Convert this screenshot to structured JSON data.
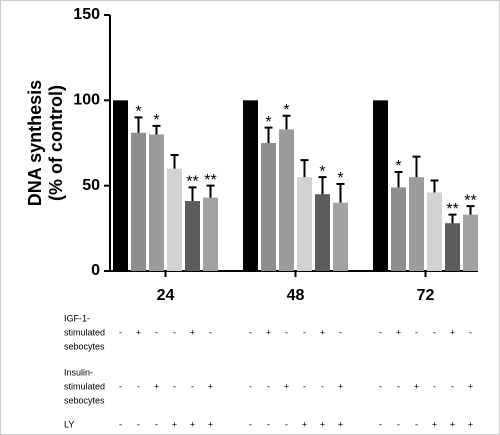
{
  "chart_data": {
    "type": "bar",
    "y_label": [
      "DNA synthesis",
      "(% of control)"
    ],
    "categories": [
      "24",
      "48",
      "72"
    ],
    "ylim": [
      0,
      150
    ],
    "yticks": [
      0,
      50,
      100,
      150
    ],
    "series": [
      {
        "color": "#000000",
        "values": [
          100,
          100,
          100
        ]
      },
      {
        "color": "#8e8e8e",
        "values": [
          81,
          75,
          49
        ],
        "errors": [
          9,
          9,
          9
        ],
        "annotations": [
          "*",
          "*",
          "*"
        ]
      },
      {
        "color": "#9c9c9c",
        "values": [
          80,
          83,
          55
        ],
        "errors": [
          5,
          8,
          12
        ],
        "annotations": [
          "*",
          "*",
          null
        ]
      },
      {
        "color": "#d2d2d2",
        "values": [
          60,
          55,
          46
        ],
        "errors": [
          8,
          10,
          7
        ]
      },
      {
        "color": "#5c5c5c",
        "values": [
          41,
          45,
          28
        ],
        "errors": [
          8,
          10,
          5
        ],
        "annotations": [
          "**",
          "*",
          "**"
        ]
      },
      {
        "color": "#a2a2a2",
        "values": [
          43,
          40,
          33
        ],
        "errors": [
          7,
          11,
          5
        ],
        "annotations": [
          "**",
          "*",
          "**"
        ]
      }
    ]
  },
  "conditions": [
    {
      "label": [
        "IGF-1-",
        "stimulated",
        "sebocytes"
      ],
      "signs": [
        [
          "-",
          "+",
          "-",
          "-",
          "+",
          "-"
        ],
        [
          "-",
          "+",
          "-",
          "-",
          "+",
          "-"
        ],
        [
          "-",
          "+",
          "-",
          "-",
          "+",
          "-"
        ]
      ]
    },
    {
      "label": [
        "Insulin-",
        "stimulated",
        "sebocytes"
      ],
      "signs": [
        [
          "-",
          "-",
          "+",
          "-",
          "-",
          "+"
        ],
        [
          "-",
          "-",
          "+",
          "-",
          "-",
          "+"
        ],
        [
          "-",
          "-",
          "+",
          "-",
          "-",
          "+"
        ]
      ]
    },
    {
      "label": [
        "LY"
      ],
      "signs": [
        [
          "-",
          "-",
          "-",
          "+",
          "+",
          "+"
        ],
        [
          "-",
          "-",
          "-",
          "+",
          "+",
          "+"
        ],
        [
          "-",
          "-",
          "-",
          "+",
          "+",
          "+"
        ]
      ]
    }
  ]
}
